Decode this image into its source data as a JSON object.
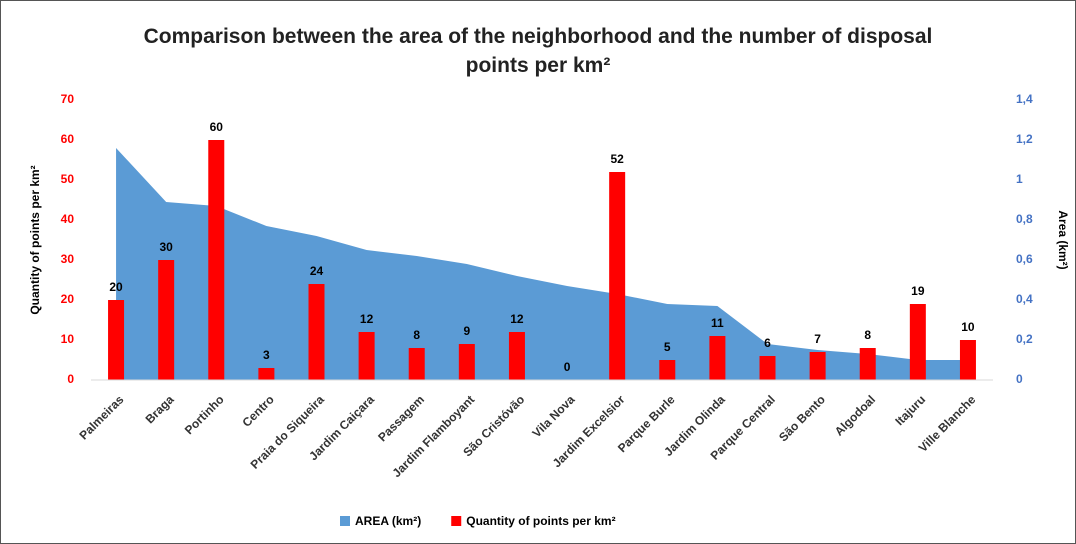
{
  "chart_data": {
    "type": "bar_area",
    "title": "Comparison between the area of the neighborhood and the number of disposal points per km²",
    "ylabel": "Quantity of points per km²",
    "y2label": "Area (km²)",
    "categories": [
      "Palmeiras",
      "Braga",
      "Portinho",
      "Centro",
      "Praia do Siqueira",
      "Jardim Caiçara",
      "Passagem",
      "Jardim Flamboyant",
      "São Cristóvão",
      "Vila Nova",
      "Jardim Excelsior",
      "Parque Burle",
      "Jardim Olinda",
      "Parque Central",
      "São Bento",
      "Algodoal",
      "Itajuru",
      "Ville Blanche"
    ],
    "series": [
      {
        "name": "AREA (km²)",
        "type": "area",
        "axis": "y2",
        "color": "#5b9bd5",
        "values": [
          1.16,
          0.89,
          0.87,
          0.77,
          0.72,
          0.65,
          0.62,
          0.58,
          0.52,
          0.47,
          0.43,
          0.38,
          0.37,
          0.18,
          0.15,
          0.13,
          0.1,
          0.1
        ]
      },
      {
        "name": "Quantity of points per km²",
        "type": "bar",
        "axis": "y",
        "color": "#ff0000",
        "values": [
          20,
          30,
          60,
          3,
          24,
          12,
          8,
          9,
          12,
          0,
          52,
          5,
          11,
          6,
          7,
          8,
          19,
          10
        ]
      }
    ],
    "ylim": [
      0,
      70
    ],
    "yticks": [
      0,
      10,
      20,
      30,
      40,
      50,
      60,
      70
    ],
    "y2lim": [
      0,
      1.4
    ],
    "y2ticks": [
      0,
      {
        "value": 0.2,
        "label": "0,2"
      },
      {
        "value": 0.4,
        "label": "0,4"
      },
      {
        "value": 0.6,
        "label": "0,6"
      },
      {
        "value": 0.8,
        "label": "0,8"
      },
      1,
      {
        "value": 1.2,
        "label": "1,2"
      },
      {
        "value": 1.4,
        "label": "1,4"
      }
    ],
    "ytick_color": "#ff0000",
    "y2tick_color": "#4472c4",
    "legend": "bottom"
  }
}
